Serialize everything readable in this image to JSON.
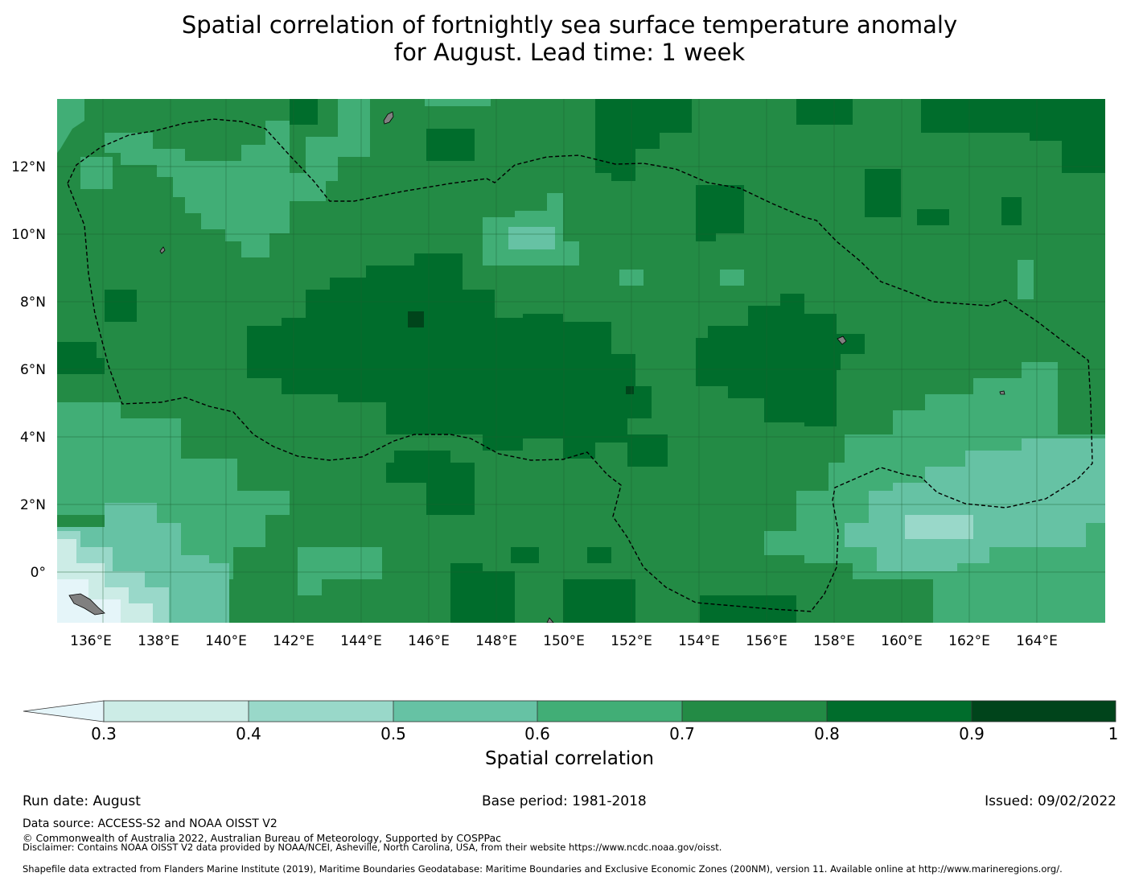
{
  "title": {
    "line1": "Spatial correlation of fortnightly sea surface temperature anomaly",
    "line2": "for August. Lead time: 1 week"
  },
  "map": {
    "lon_range": [
      135,
      166
    ],
    "lat_range": [
      -1.5,
      14
    ],
    "lon_ticks": [
      "136°E",
      "138°E",
      "140°E",
      "142°E",
      "144°E",
      "146°E",
      "148°E",
      "150°E",
      "152°E",
      "154°E",
      "156°E",
      "158°E",
      "160°E",
      "162°E",
      "164°E"
    ],
    "lat_ticks": [
      "0°",
      "2°N",
      "4°N",
      "6°N",
      "8°N",
      "10°N",
      "12°N"
    ],
    "colors": {
      "lt_0_3": "#e5f5f9",
      "b_0_3_0_4": "#ccece6",
      "b_0_4_0_5": "#99d8c9",
      "b_0_5_0_6": "#66c2a4",
      "b_0_6_0_7": "#41ae76",
      "b_0_7_0_8": "#238b45",
      "b_0_8_0_9": "#006d2c",
      "b_0_9_1": "#00441b",
      "land": "#808080",
      "boundary": "#000000"
    }
  },
  "colorbar": {
    "label": "Spatial correlation",
    "ticks": [
      "0.3",
      "0.4",
      "0.5",
      "0.6",
      "0.7",
      "0.8",
      "0.9",
      "1"
    ],
    "colors": [
      "#ccece6",
      "#99d8c9",
      "#66c2a4",
      "#41ae76",
      "#238b45",
      "#006d2c",
      "#00441b"
    ],
    "extend_color": "#e5f5f9"
  },
  "footer": {
    "run_date": "Run date: August",
    "base_period": "Base period: 1981-2018",
    "issued": "Issued: 09/02/2022",
    "data_source": "Data source: ACCESS-S2 and NOAA OISST V2",
    "copyright": "© Commonwealth of Australia 2022, Australian Bureau of Meteorology, Supported by COSPPac",
    "disclaimer": "Disclaimer: Contains NOAA OISST V2 data provided by NOAA/NCEI, Asheville, North Carolina, USA, from their website https://www.ncdc.noaa.gov/oisst.",
    "shapefile": "Shapefile data extracted from Flanders Marine Institute (2019), Maritime Boundaries Geodatabase: Maritime Boundaries and Exclusive Economic Zones (200NM), version 11. Available online at http://www.marineregions.org/."
  }
}
